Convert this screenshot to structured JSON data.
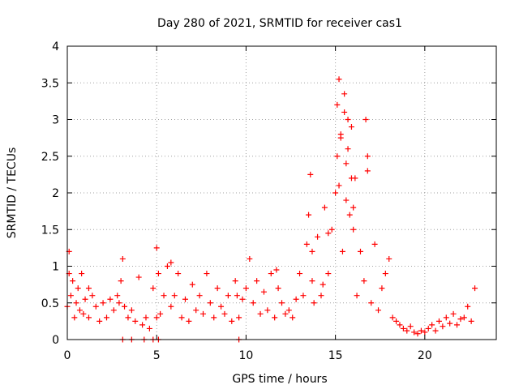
{
  "chart_data": {
    "type": "scatter",
    "title": "Day 280 of 2021, SRMTID for receiver cas1",
    "xlabel": "GPS time / hours",
    "ylabel": "SRMTID / TECUs",
    "xlim": [
      0,
      24
    ],
    "ylim": [
      0,
      4
    ],
    "xticks": [
      "0",
      "5",
      "10",
      "15",
      "20"
    ],
    "yticks": [
      "0",
      "0.5",
      "1",
      "1.5",
      "2",
      "2.5",
      "3",
      "3.5",
      "4"
    ],
    "grid": true,
    "marker": "+",
    "series": [
      {
        "name": "cas1",
        "color": "#ff0000",
        "x": [
          0.0,
          0.1,
          0.2,
          0.3,
          0.4,
          0.5,
          0.6,
          0.7,
          0.8,
          0.9,
          1.0,
          1.2,
          1.4,
          1.6,
          1.8,
          2.0,
          2.2,
          2.4,
          2.6,
          2.8,
          3.0,
          3.1,
          3.2,
          3.4,
          3.6,
          3.8,
          4.0,
          4.2,
          4.4,
          4.6,
          4.8,
          5.0,
          5.1,
          5.2,
          5.4,
          5.6,
          5.8,
          6.0,
          6.2,
          6.4,
          6.6,
          6.8,
          7.0,
          7.2,
          7.4,
          7.6,
          7.8,
          8.0,
          8.2,
          8.4,
          8.6,
          8.8,
          9.0,
          9.2,
          9.4,
          9.6,
          9.8,
          10.0,
          10.2,
          10.4,
          10.6,
          10.8,
          11.0,
          11.2,
          11.4,
          11.6,
          11.8,
          12.0,
          12.2,
          12.4,
          12.6,
          12.8,
          13.0,
          13.2,
          13.4,
          13.5,
          13.6,
          13.7,
          13.8,
          14.0,
          14.2,
          14.4,
          14.6,
          14.8,
          15.0,
          15.1,
          15.2,
          15.3,
          15.4,
          15.5,
          15.6,
          15.7,
          15.8,
          15.9,
          16.0,
          16.2,
          16.4,
          16.6,
          16.8,
          17.0,
          17.2,
          17.4,
          17.6,
          17.8,
          18.0,
          18.2,
          18.4,
          18.6,
          18.8,
          19.0,
          19.2,
          19.4,
          19.6,
          19.8,
          20.0,
          20.2,
          20.4,
          20.6,
          20.8,
          21.0,
          21.2,
          21.4,
          21.6,
          21.8,
          22.0,
          22.2,
          22.4,
          22.6,
          22.8,
          3.1,
          3.6,
          4.3,
          4.8,
          5.1,
          9.6,
          0.1,
          1.2,
          2.9,
          5.0,
          5.8,
          9.5,
          11.7,
          13.7,
          14.3,
          15.1,
          15.3,
          15.5,
          15.6,
          15.9,
          16.7,
          16.8,
          14.6,
          15.2,
          15.7,
          16.0,
          16.1
        ],
        "y": [
          0.45,
          1.2,
          0.6,
          0.8,
          0.3,
          0.5,
          0.7,
          0.4,
          0.9,
          0.35,
          0.55,
          0.3,
          0.6,
          0.45,
          0.25,
          0.5,
          0.3,
          0.55,
          0.4,
          0.6,
          0.8,
          1.1,
          0.45,
          0.3,
          0.4,
          0.25,
          0.85,
          0.2,
          0.3,
          0.15,
          0.7,
          1.25,
          0.9,
          0.35,
          0.6,
          1.0,
          0.45,
          0.6,
          0.9,
          0.3,
          0.55,
          0.25,
          0.75,
          0.4,
          0.6,
          0.35,
          0.9,
          0.5,
          0.3,
          0.7,
          0.45,
          0.35,
          0.6,
          0.25,
          0.8,
          0.3,
          0.55,
          0.7,
          1.1,
          0.5,
          0.8,
          0.35,
          0.65,
          0.4,
          0.9,
          0.3,
          0.7,
          0.5,
          0.35,
          0.4,
          0.3,
          0.55,
          0.9,
          0.6,
          1.3,
          1.7,
          2.25,
          0.8,
          0.5,
          1.4,
          0.6,
          1.8,
          0.9,
          1.5,
          2.0,
          2.5,
          3.55,
          2.8,
          1.2,
          3.1,
          2.4,
          3.0,
          1.7,
          2.2,
          1.5,
          0.6,
          1.2,
          0.8,
          2.3,
          0.5,
          1.3,
          0.4,
          0.7,
          0.9,
          1.1,
          0.3,
          0.25,
          0.2,
          0.15,
          0.12,
          0.18,
          0.1,
          0.08,
          0.12,
          0.1,
          0.15,
          0.2,
          0.12,
          0.25,
          0.18,
          0.3,
          0.22,
          0.35,
          0.2,
          0.28,
          0.3,
          0.45,
          0.25,
          0.7,
          0.0,
          0.0,
          0.0,
          0.0,
          0.0,
          0.0,
          0.9,
          0.7,
          0.5,
          0.3,
          1.05,
          0.6,
          0.95,
          1.2,
          0.75,
          3.2,
          2.75,
          3.35,
          1.9,
          2.9,
          3.0,
          2.5,
          1.45,
          2.1,
          2.6,
          1.8,
          2.2
        ]
      }
    ]
  }
}
